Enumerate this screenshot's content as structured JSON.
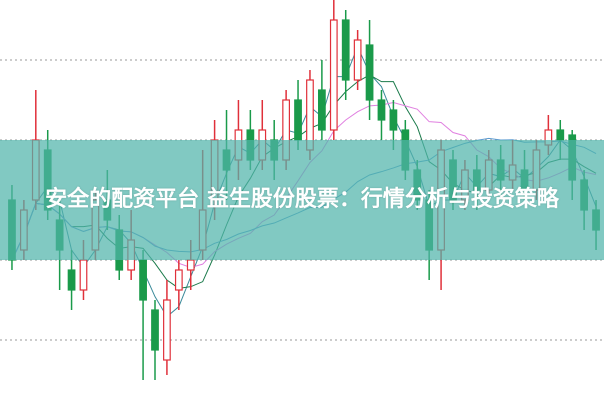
{
  "banner": {
    "title": "安全的配资平台 益生股份股票：行情分析与投资策略",
    "band_color": "#7fc8c0"
  },
  "chart_data": {
    "type": "candlestick",
    "up_color": "#e0303a",
    "down_color": "#1a9a4a",
    "ma_colors": [
      "#3a8a9a",
      "#1a7a4a",
      "#e080e0",
      "#5a9ad0"
    ],
    "grid": true,
    "candles": [
      {
        "o": 200,
        "c": 140,
        "h": 215,
        "l": 130
      },
      {
        "o": 150,
        "c": 190,
        "h": 200,
        "l": 140
      },
      {
        "o": 200,
        "c": 260,
        "h": 310,
        "l": 190
      },
      {
        "o": 250,
        "c": 190,
        "h": 270,
        "l": 180
      },
      {
        "o": 180,
        "c": 150,
        "h": 200,
        "l": 110
      },
      {
        "o": 130,
        "c": 110,
        "h": 150,
        "l": 90
      },
      {
        "o": 110,
        "c": 140,
        "h": 160,
        "l": 100
      },
      {
        "o": 150,
        "c": 200,
        "h": 210,
        "l": 140
      },
      {
        "o": 200,
        "c": 180,
        "h": 230,
        "l": 170
      },
      {
        "o": 170,
        "c": 130,
        "h": 185,
        "l": 120
      },
      {
        "o": 130,
        "c": 160,
        "h": 190,
        "l": 120
      },
      {
        "o": 140,
        "c": 100,
        "h": 150,
        "l": 20
      },
      {
        "o": 90,
        "c": 50,
        "h": 100,
        "l": 20
      },
      {
        "o": 40,
        "c": 100,
        "h": 120,
        "l": 25
      },
      {
        "o": 110,
        "c": 130,
        "h": 140,
        "l": 90
      },
      {
        "o": 130,
        "c": 140,
        "h": 160,
        "l": 110
      },
      {
        "o": 150,
        "c": 190,
        "h": 250,
        "l": 140
      },
      {
        "o": 200,
        "c": 260,
        "h": 280,
        "l": 180
      },
      {
        "o": 250,
        "c": 230,
        "h": 290,
        "l": 200
      },
      {
        "o": 240,
        "c": 270,
        "h": 300,
        "l": 220
      },
      {
        "o": 270,
        "c": 240,
        "h": 290,
        "l": 230
      },
      {
        "o": 240,
        "c": 270,
        "h": 300,
        "l": 230
      },
      {
        "o": 260,
        "c": 240,
        "h": 280,
        "l": 220
      },
      {
        "o": 240,
        "c": 300,
        "h": 310,
        "l": 230
      },
      {
        "o": 300,
        "c": 260,
        "h": 320,
        "l": 250
      },
      {
        "o": 250,
        "c": 320,
        "h": 330,
        "l": 240
      },
      {
        "o": 310,
        "c": 270,
        "h": 340,
        "l": 260
      },
      {
        "o": 270,
        "c": 380,
        "h": 400,
        "l": 260
      },
      {
        "o": 380,
        "c": 320,
        "h": 390,
        "l": 300
      },
      {
        "o": 320,
        "c": 360,
        "h": 370,
        "l": 310
      },
      {
        "o": 355,
        "c": 300,
        "h": 380,
        "l": 280
      },
      {
        "o": 300,
        "c": 280,
        "h": 310,
        "l": 260
      },
      {
        "o": 290,
        "c": 270,
        "h": 300,
        "l": 250
      },
      {
        "o": 270,
        "c": 230,
        "h": 280,
        "l": 220
      },
      {
        "o": 230,
        "c": 200,
        "h": 240,
        "l": 190
      },
      {
        "o": 200,
        "c": 150,
        "h": 210,
        "l": 120
      },
      {
        "o": 150,
        "c": 250,
        "h": 260,
        "l": 110
      },
      {
        "o": 240,
        "c": 200,
        "h": 250,
        "l": 190
      },
      {
        "o": 200,
        "c": 230,
        "h": 240,
        "l": 190
      },
      {
        "o": 230,
        "c": 210,
        "h": 245,
        "l": 190
      },
      {
        "o": 210,
        "c": 240,
        "h": 250,
        "l": 200
      },
      {
        "o": 240,
        "c": 220,
        "h": 255,
        "l": 200
      },
      {
        "o": 220,
        "c": 235,
        "h": 260,
        "l": 210
      },
      {
        "o": 230,
        "c": 210,
        "h": 250,
        "l": 200
      },
      {
        "o": 210,
        "c": 250,
        "h": 260,
        "l": 200
      },
      {
        "o": 255,
        "c": 270,
        "h": 285,
        "l": 245
      },
      {
        "o": 270,
        "c": 260,
        "h": 280,
        "l": 240
      },
      {
        "o": 265,
        "c": 220,
        "h": 270,
        "l": 200
      },
      {
        "o": 220,
        "c": 190,
        "h": 230,
        "l": 170
      },
      {
        "o": 190,
        "c": 170,
        "h": 200,
        "l": 150
      }
    ]
  }
}
